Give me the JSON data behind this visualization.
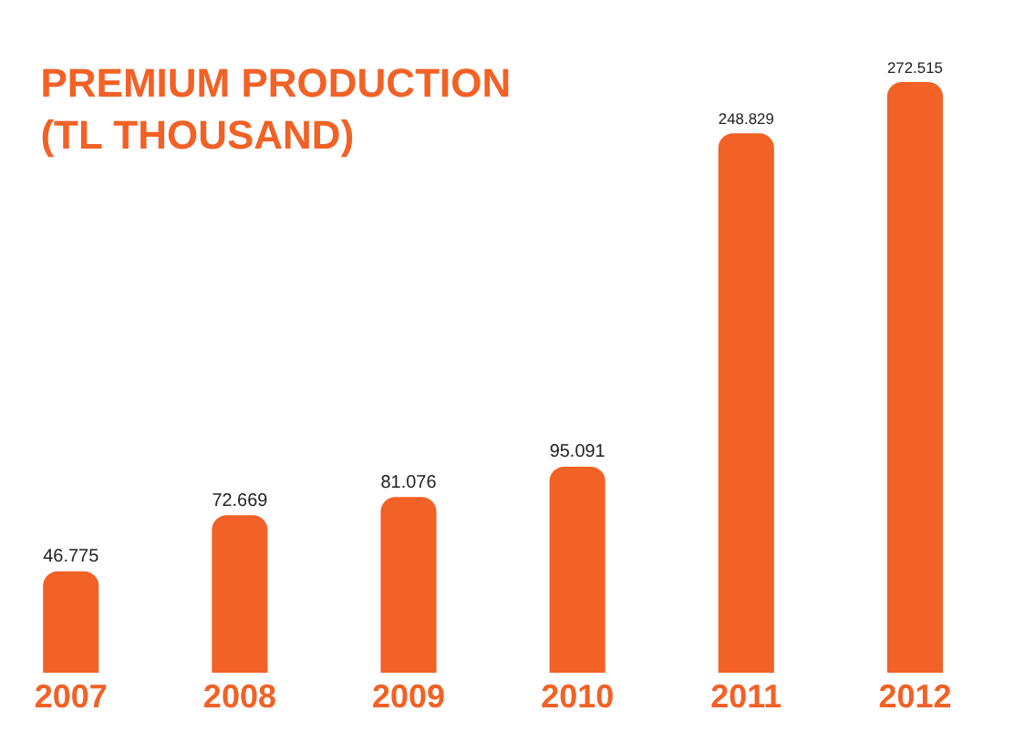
{
  "chart_data": {
    "type": "bar",
    "title": "PREMIUM PRODUCTION\n(TL THOUSAND)",
    "categories": [
      "2007",
      "2008",
      "2009",
      "2010",
      "2011",
      "2012"
    ],
    "values": [
      46775,
      72669,
      81076,
      95091,
      248829,
      272515
    ],
    "value_labels": [
      "46.775",
      "72.669",
      "81.076",
      "95.091",
      "248.829",
      "272.515"
    ],
    "color": "#f26125"
  }
}
